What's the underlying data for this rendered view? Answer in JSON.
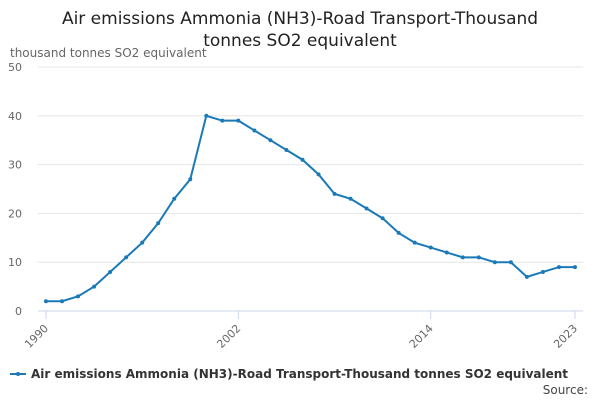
{
  "chart_data": {
    "type": "line",
    "title": "Air emissions Ammonia (NH3)-Road Transport-Thousand tonnes SO2 equivalent",
    "y_label": "thousand tonnes SO2 equivalent",
    "source_label": "Source:",
    "x": [
      1990,
      1991,
      1992,
      1993,
      1994,
      1995,
      1996,
      1997,
      1998,
      1999,
      2000,
      2001,
      2002,
      2003,
      2004,
      2005,
      2006,
      2007,
      2008,
      2009,
      2010,
      2011,
      2012,
      2013,
      2014,
      2015,
      2016,
      2017,
      2018,
      2019,
      2020,
      2021,
      2022,
      2023
    ],
    "series": [
      {
        "name": "Air emissions Ammonia (NH3)-Road Transport-Thousand tonnes SO2 equivalent",
        "color": "#1a7ab8",
        "values": [
          2,
          2,
          3,
          5,
          8,
          11,
          14,
          18,
          23,
          27,
          40,
          39,
          39,
          37,
          35,
          33,
          31,
          28,
          24,
          23,
          21,
          19,
          16,
          14,
          13,
          12,
          11,
          11,
          10,
          10,
          7,
          8,
          9,
          9
        ]
      }
    ],
    "xlim": [
      1990,
      2023
    ],
    "xticks": [
      1990,
      2002,
      2014,
      2023
    ],
    "ylim": [
      0,
      50
    ],
    "yticks": [
      0,
      10,
      20,
      30,
      40,
      50
    ],
    "grid": true
  }
}
